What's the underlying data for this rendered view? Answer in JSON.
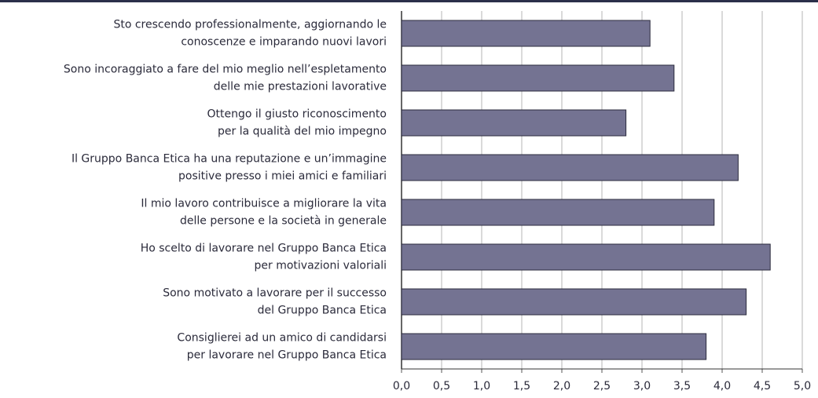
{
  "chart_data": {
    "type": "barh",
    "categories": [
      [
        "Sto crescendo professionalmente, aggiornando le",
        "conoscenze e imparando nuovi lavori"
      ],
      [
        "Sono incoraggiato a fare del mio meglio nell’espletamento",
        "delle mie prestazioni lavorative"
      ],
      [
        "Ottengo il giusto riconoscimento",
        "per la qualità del mio impegno"
      ],
      [
        "Il Gruppo Banca Etica ha una reputazione e un’immagine",
        "positive presso i miei amici e familiari"
      ],
      [
        "Il mio lavoro contribuisce a migliorare la vita",
        "delle persone e la società in generale"
      ],
      [
        "Ho scelto di lavorare nel Gruppo Banca Etica",
        "per motivazioni valoriali"
      ],
      [
        "Sono motivato a lavorare per il successo",
        "del Gruppo Banca Etica"
      ],
      [
        "Consiglierei ad un amico di candidarsi",
        "per lavorare nel Gruppo Banca Etica"
      ]
    ],
    "values": [
      3.1,
      3.4,
      2.8,
      4.2,
      3.9,
      4.6,
      4.3,
      3.8
    ],
    "color": "#747392",
    "xlim": [
      0,
      5
    ],
    "xticks": [
      {
        "value": 0,
        "label": "0,0"
      },
      {
        "value": 0.5,
        "label": "0,5"
      },
      {
        "value": 1,
        "label": "1,0"
      },
      {
        "value": 1.5,
        "label": "1,5"
      },
      {
        "value": 2,
        "label": "2,0"
      },
      {
        "value": 2.5,
        "label": "2,5"
      },
      {
        "value": 3,
        "label": "3,0"
      },
      {
        "value": 3.5,
        "label": "3,5"
      },
      {
        "value": 4,
        "label": "4,0"
      },
      {
        "value": 4.5,
        "label": "4,5"
      },
      {
        "value": 5,
        "label": "5,0"
      }
    ],
    "grid": true
  }
}
